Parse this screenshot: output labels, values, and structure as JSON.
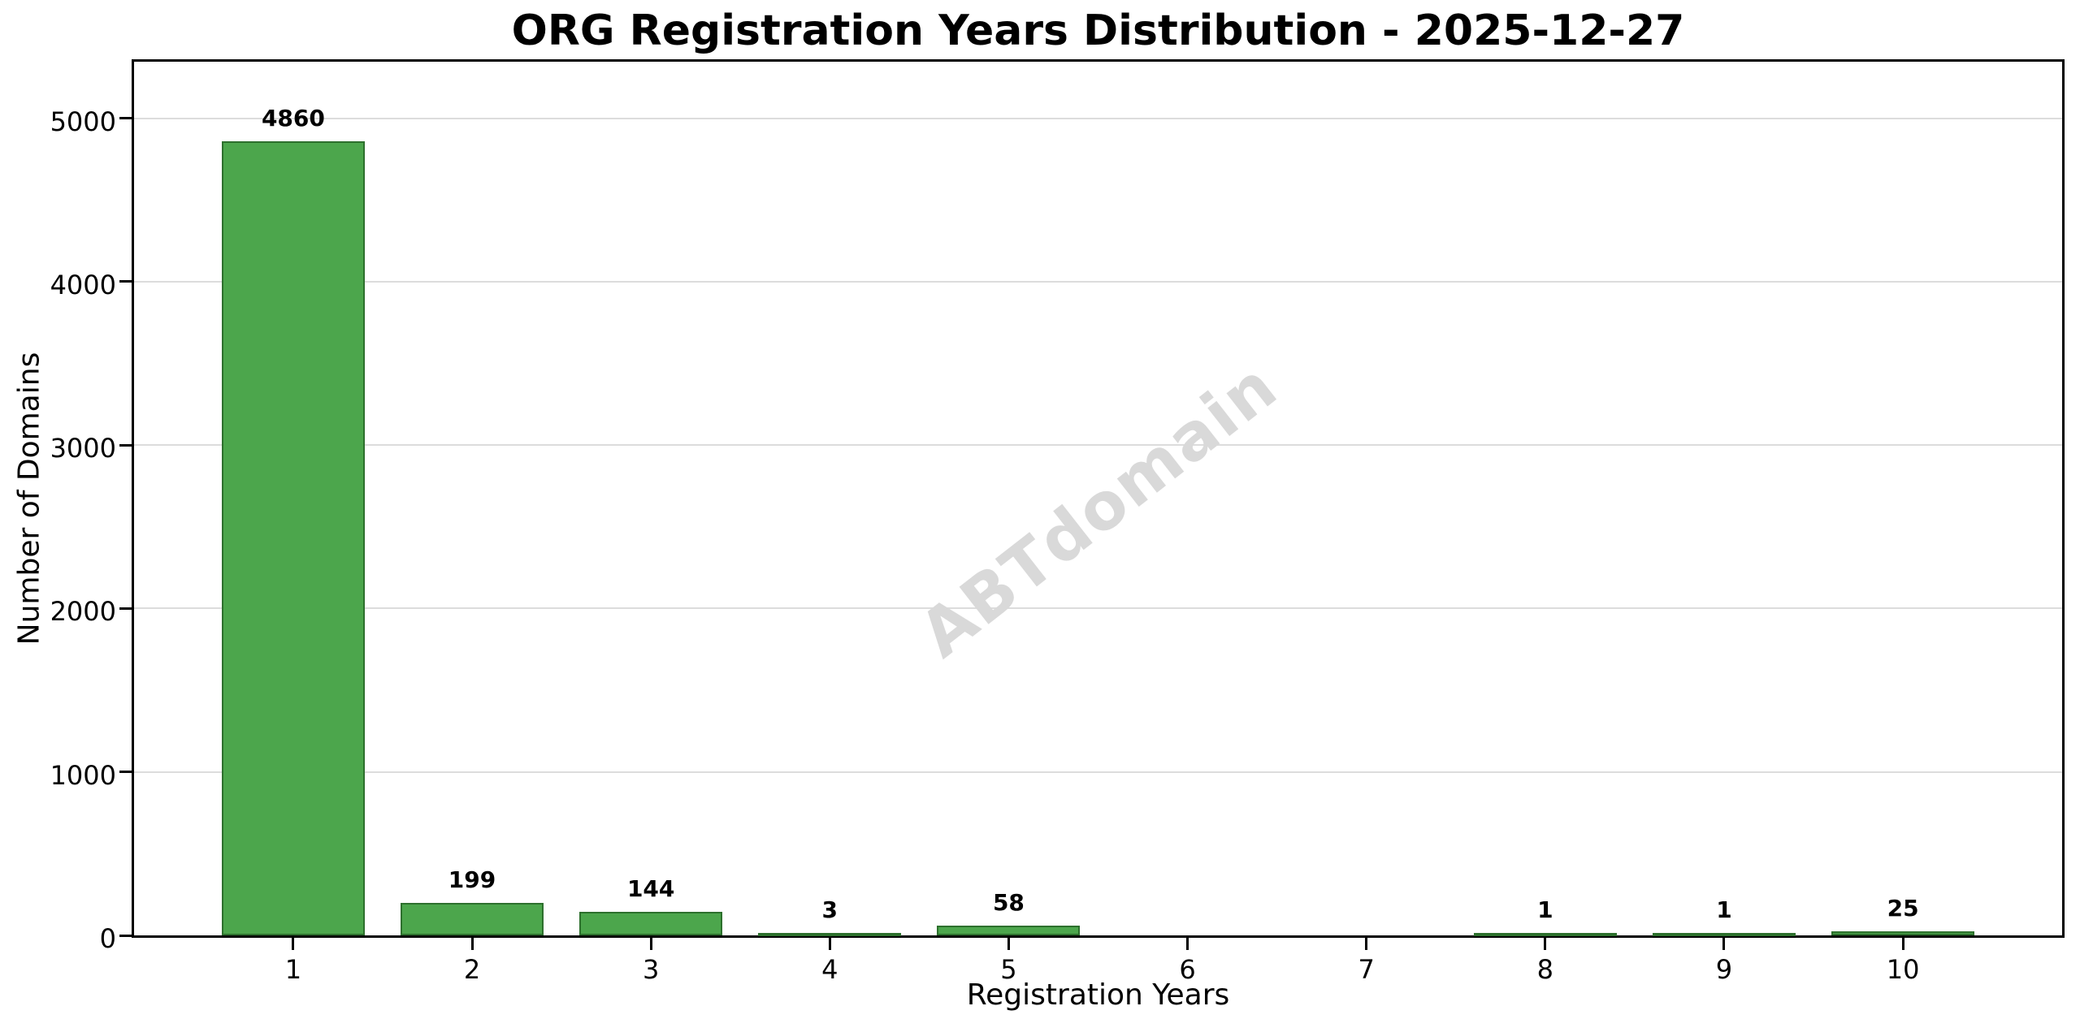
{
  "figure": {
    "background": "#ffffff"
  },
  "chart_data": {
    "type": "bar",
    "title": "ORG Registration Years Distribution - 2025-12-27",
    "xlabel": "Registration Years",
    "ylabel": "Number of Domains",
    "categories": [
      "1",
      "2",
      "3",
      "4",
      "5",
      "6",
      "7",
      "8",
      "9",
      "10"
    ],
    "values": [
      4860,
      199,
      144,
      3,
      58,
      0,
      0,
      1,
      1,
      25
    ],
    "bar_value_labels": [
      "4860",
      "199",
      "144",
      "3",
      "58",
      "",
      "",
      "1",
      "1",
      "25"
    ],
    "yticks": [
      0,
      1000,
      2000,
      3000,
      4000,
      5000
    ],
    "ylim": [
      0,
      5346
    ],
    "xlim": [
      0.11,
      10.89
    ],
    "bar_width": 0.8,
    "grid": "horizontal gridlines only, on",
    "legend_position": "none",
    "bar_color": "#4ca64c",
    "bar_edge_color": "#2d702d",
    "grid_color": "#dcdcdc",
    "spine_color": "#000000",
    "text_color": "#000000",
    "watermark": {
      "text": "ABTdomain",
      "color": "#d9d9d9",
      "rotation_deg": -38
    }
  }
}
